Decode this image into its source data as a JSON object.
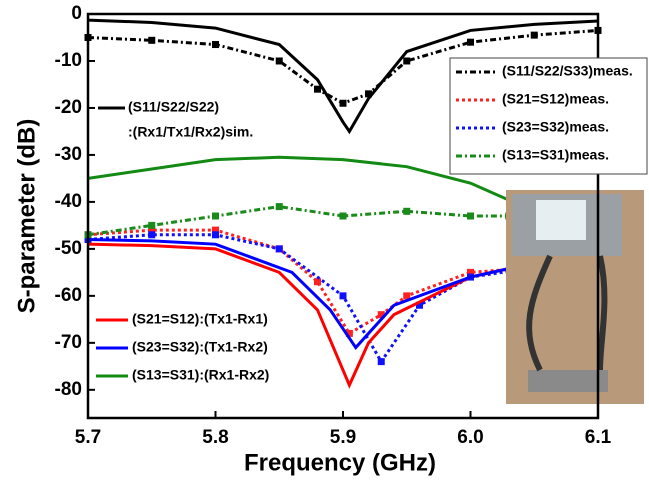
{
  "chart_data": {
    "type": "line",
    "xlabel": "Frequency (GHz)",
    "ylabel": "S-parameter (dB)",
    "xlim": [
      5.7,
      6.1
    ],
    "ylim": [
      -86,
      0
    ],
    "xticks": [
      5.7,
      5.8,
      5.9,
      {
        "value": 6.0,
        "label": "6.0"
      },
      6.1
    ],
    "yticks": [
      0,
      -10,
      -20,
      -30,
      -40,
      -50,
      -60,
      -70,
      -80
    ],
    "series": [
      {
        "name": "(S11/S22/S22)",
        "note": ":(Rx1/Tx1/Rx2)sim.",
        "color": "#000000",
        "style": "solid",
        "x": [
          5.7,
          5.75,
          5.8,
          5.85,
          5.88,
          5.9,
          5.905,
          5.92,
          5.95,
          6.0,
          6.05,
          6.1
        ],
        "values": [
          -1.3,
          -1.8,
          -3,
          -6.5,
          -14,
          -23,
          -25,
          -18,
          -8,
          -3.5,
          -2.2,
          -1.5
        ]
      },
      {
        "name": "(S11/S22/S33)meas.",
        "color": "#000000",
        "style": "dashdot",
        "x": [
          5.7,
          5.75,
          5.8,
          5.85,
          5.88,
          5.9,
          5.92,
          5.95,
          6.0,
          6.05,
          6.1
        ],
        "values": [
          -5,
          -5.6,
          -6.5,
          -10,
          -16,
          -19,
          -17,
          -10,
          -6,
          -4.5,
          -3.5
        ]
      },
      {
        "name": "(S21=S12)meas.",
        "color": "#ff2020",
        "style": "dot",
        "x": [
          5.7,
          5.75,
          5.8,
          5.85,
          5.88,
          5.905,
          5.93,
          5.95,
          6.0,
          6.05
        ],
        "values": [
          -47,
          -46,
          -46,
          -50,
          -57,
          -68,
          -64,
          -60,
          -55,
          -54
        ]
      },
      {
        "name": "(S23=S32)meas.",
        "color": "#1010ff",
        "style": "dot",
        "x": [
          5.7,
          5.75,
          5.8,
          5.85,
          5.9,
          5.93,
          5.96,
          6.0,
          6.05
        ],
        "values": [
          -48,
          -47,
          -47,
          -50,
          -60,
          -74,
          -62,
          -56,
          -54
        ]
      },
      {
        "name": "(S13=S31)meas.",
        "color": "#1a8a1a",
        "style": "dashdot",
        "x": [
          5.7,
          5.75,
          5.8,
          5.85,
          5.9,
          5.95,
          6.0,
          6.03
        ],
        "values": [
          -47,
          -45,
          -43,
          -41,
          -43,
          -42,
          -43,
          -43
        ]
      },
      {
        "name": "(S21=S12):(Tx1-Rx1)",
        "color": "#ff0000",
        "style": "solid",
        "x": [
          5.7,
          5.75,
          5.8,
          5.85,
          5.88,
          5.905,
          5.92,
          5.94,
          6.0,
          6.05
        ],
        "values": [
          -49,
          -49.3,
          -50,
          -55,
          -63,
          -79,
          -70,
          -64,
          -56,
          -53
        ]
      },
      {
        "name": "(S23=S32):(Tx1-Rx2)",
        "color": "#0000ff",
        "style": "solid",
        "x": [
          5.7,
          5.75,
          5.8,
          5.86,
          5.89,
          5.91,
          5.94,
          6.0,
          6.05
        ],
        "values": [
          -48,
          -48.3,
          -49,
          -55,
          -63,
          -71,
          -62,
          -56,
          -53
        ]
      },
      {
        "name": "(S13=S31):(Rx1-Rx2)",
        "color": "#138a13",
        "style": "solid",
        "x": [
          5.7,
          5.75,
          5.8,
          5.85,
          5.9,
          5.95,
          6.0,
          6.05
        ],
        "values": [
          -35,
          -33,
          -31,
          -30.5,
          -31,
          -32.5,
          -36,
          -42
        ]
      }
    ]
  }
}
